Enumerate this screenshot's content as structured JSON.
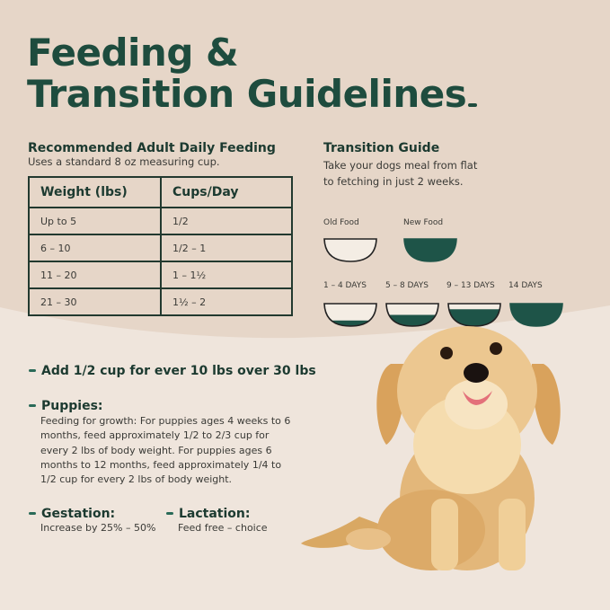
{
  "title": {
    "line1": "Feeding &",
    "line2": "Transition Guidelines"
  },
  "feeding": {
    "heading": "Recommended Adult Daily Feeding",
    "subheading": "Uses a standard 8 oz measuring cup.",
    "columns": [
      "Weight (lbs)",
      "Cups/Day"
    ],
    "rows": [
      [
        "Up to 5",
        "1/2"
      ],
      [
        "6 – 10",
        "1/2 – 1"
      ],
      [
        "11 – 20",
        "1 – 1½"
      ],
      [
        "21 – 30",
        "1½ – 2"
      ]
    ]
  },
  "transition": {
    "heading": "Transition Guide",
    "line1": "Take your dogs meal from flat",
    "line2": "to fetching in just 2 weeks.",
    "legend": [
      {
        "label": "Old Food",
        "new_food_fraction": 0
      },
      {
        "label": "New Food",
        "new_food_fraction": 1
      }
    ],
    "stages": [
      {
        "label": "1 – 4 DAYS",
        "new_food_fraction": 0.25
      },
      {
        "label": "5 – 8 DAYS",
        "new_food_fraction": 0.5
      },
      {
        "label": "9 – 13 DAYS",
        "new_food_fraction": 0.75
      },
      {
        "label": "14 DAYS",
        "new_food_fraction": 1
      }
    ]
  },
  "notes": {
    "extra": "Add 1/2 cup for ever 10 lbs over 30 lbs",
    "puppies_title": "Puppies:",
    "puppies_text": "Feeding for growth: For puppies ages 4 weeks to 6 months, feed approximately 1/2 to 2/3 cup for every 2 lbs of body weight. For puppies ages 6 months to 12 months, feed approximately 1/4 to 1/2 cup for every 2 lbs of body weight.",
    "gestation_title": "Gestation:",
    "gestation_text": "Increase by 25% – 50%",
    "lactation_title": "Lactation:",
    "lactation_text": "Feed free – choice"
  },
  "colors": {
    "brand_green": "#1e5448",
    "bg_top": "#e6d6c8",
    "bg_bottom": "#efe5dc"
  }
}
